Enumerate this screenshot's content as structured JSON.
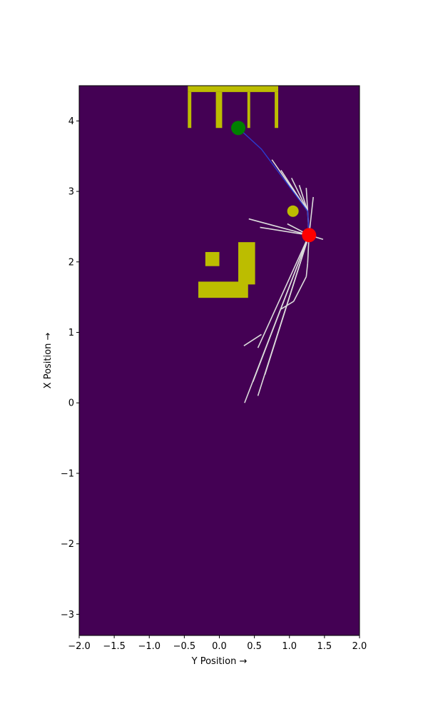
{
  "chart_data": {
    "type": "scatter",
    "title": "",
    "xlabel": "Y Position →",
    "ylabel": "X Position →",
    "xlim": [
      -2.0,
      2.0
    ],
    "ylim": [
      -3.3,
      4.5
    ],
    "x_ticks": [
      -2.0,
      -1.5,
      -1.0,
      -0.5,
      0.0,
      0.5,
      1.0,
      1.5,
      2.0
    ],
    "x_tick_labels": [
      "−2.0",
      "−1.5",
      "−1.0",
      "−0.5",
      "0.0",
      "0.5",
      "1.0",
      "1.5",
      "2.0"
    ],
    "y_ticks": [
      -3,
      -2,
      -1,
      0,
      1,
      2,
      3,
      4
    ],
    "y_tick_labels": [
      "−3",
      "−2",
      "−1",
      "0",
      "1",
      "2",
      "3",
      "4"
    ],
    "grid": false,
    "colors": {
      "background": "#440154",
      "obstacle": "#bcbd00",
      "tree_edge": "#dcdcdc",
      "path": "#2a3cd0",
      "start": "#ff0000",
      "goal": "#007f00",
      "waypoint": "#bcbd00"
    },
    "obstacles": [
      {
        "x0": -0.45,
        "x1": 0.84,
        "y0": 4.41,
        "y1": 4.5
      },
      {
        "x0": -0.45,
        "x1": -0.4,
        "y0": 3.9,
        "y1": 4.41
      },
      {
        "x0": -0.05,
        "x1": 0.04,
        "y0": 3.9,
        "y1": 4.41
      },
      {
        "x0": 0.4,
        "x1": 0.44,
        "y0": 3.9,
        "y1": 4.41
      },
      {
        "x0": 0.79,
        "x1": 0.84,
        "y0": 3.9,
        "y1": 4.41
      },
      {
        "x0": -0.2,
        "x1": 0.0,
        "y0": 1.94,
        "y1": 2.14
      },
      {
        "x0": 0.27,
        "x1": 0.51,
        "y0": 1.68,
        "y1": 2.28
      },
      {
        "x0": -0.3,
        "x1": 0.41,
        "y0": 1.49,
        "y1": 1.72
      }
    ],
    "tree_edges": [
      [
        [
          1.28,
          2.38
        ],
        [
          1.26,
          2.72
        ]
      ],
      [
        [
          1.26,
          2.72
        ],
        [
          1.24,
          3.05
        ]
      ],
      [
        [
          1.26,
          2.72
        ],
        [
          1.14,
          3.09
        ]
      ],
      [
        [
          1.26,
          2.72
        ],
        [
          1.03,
          3.19
        ]
      ],
      [
        [
          1.26,
          2.72
        ],
        [
          0.88,
          3.3
        ]
      ],
      [
        [
          1.26,
          2.72
        ],
        [
          0.75,
          3.45
        ]
      ],
      [
        [
          1.28,
          2.38
        ],
        [
          1.34,
          2.92
        ]
      ],
      [
        [
          1.28,
          2.38
        ],
        [
          0.42,
          2.61
        ]
      ],
      [
        [
          1.28,
          2.38
        ],
        [
          0.58,
          2.49
        ]
      ],
      [
        [
          1.28,
          2.38
        ],
        [
          1.48,
          2.32
        ]
      ],
      [
        [
          1.28,
          2.38
        ],
        [
          0.97,
          2.54
        ]
      ],
      [
        [
          1.28,
          2.38
        ],
        [
          1.26,
          1.98
        ]
      ],
      [
        [
          1.26,
          1.98
        ],
        [
          1.24,
          1.79
        ]
      ],
      [
        [
          1.24,
          1.79
        ],
        [
          1.06,
          1.44
        ]
      ],
      [
        [
          1.06,
          1.44
        ],
        [
          0.88,
          1.33
        ]
      ],
      [
        [
          1.28,
          2.38
        ],
        [
          0.55,
          0.78
        ]
      ],
      [
        [
          0.6,
          0.97
        ],
        [
          0.35,
          0.81
        ]
      ],
      [
        [
          1.28,
          2.38
        ],
        [
          0.48,
          0.3
        ]
      ],
      [
        [
          1.28,
          2.38
        ],
        [
          0.36,
          0.0
        ]
      ],
      [
        [
          1.28,
          2.38
        ],
        [
          0.55,
          0.1
        ]
      ],
      [
        [
          1.28,
          2.38
        ],
        [
          0.65,
          0.4
        ]
      ]
    ],
    "path": [
      [
        1.28,
        2.38
      ],
      [
        1.26,
        2.72
      ],
      [
        0.6,
        3.6
      ],
      [
        0.27,
        3.9
      ]
    ],
    "markers": [
      {
        "name": "start",
        "x": 1.28,
        "y": 2.38,
        "color": "#ff0000",
        "radius": 10
      },
      {
        "name": "goal",
        "x": 0.27,
        "y": 3.9,
        "color": "#007f00",
        "radius": 10
      },
      {
        "name": "waypoint",
        "x": 1.05,
        "y": 2.72,
        "color": "#bcbd00",
        "radius": 8
      }
    ]
  }
}
